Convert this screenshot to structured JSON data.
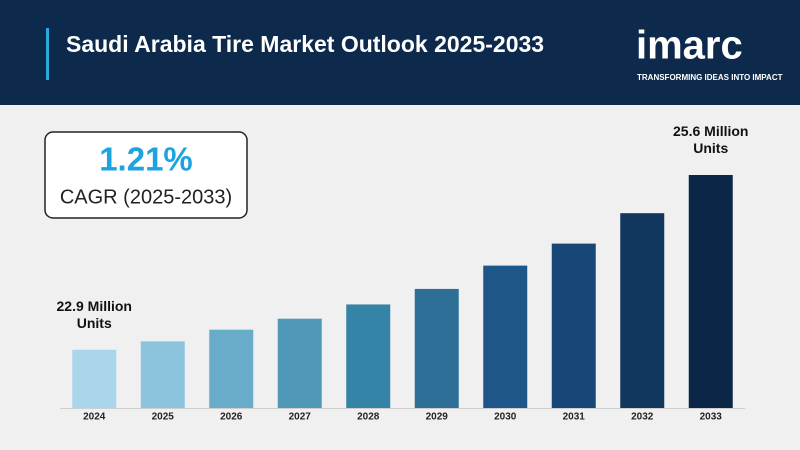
{
  "header": {
    "title": "Saudi Arabia Tire Market Outlook 2025-2033",
    "logo": "imarc",
    "tagline": "TRANSFORMING IDEAS INTO IMPACT"
  },
  "cagr": {
    "value": "1.21%",
    "label": "CAGR (2025-2033)"
  },
  "chart_data": {
    "type": "bar",
    "categories": [
      "2024",
      "2025",
      "2026",
      "2027",
      "2028",
      "2029",
      "2030",
      "2031",
      "2032",
      "2033"
    ],
    "values": [
      22.9,
      23.03,
      23.21,
      23.38,
      23.6,
      23.84,
      24.2,
      24.54,
      25.01,
      25.6
    ],
    "value_labels": [
      "22.9 Million Units",
      null,
      null,
      null,
      null,
      null,
      null,
      null,
      null,
      "25.6 Million Units"
    ],
    "colors": [
      "#a9d6ea",
      "#8cc4de",
      "#68acc9",
      "#4f98b8",
      "#3584a8",
      "#2d6f97",
      "#1f5689",
      "#174777",
      "#12375f",
      "#0b2647"
    ],
    "ylim": [
      22,
      25.6
    ]
  }
}
